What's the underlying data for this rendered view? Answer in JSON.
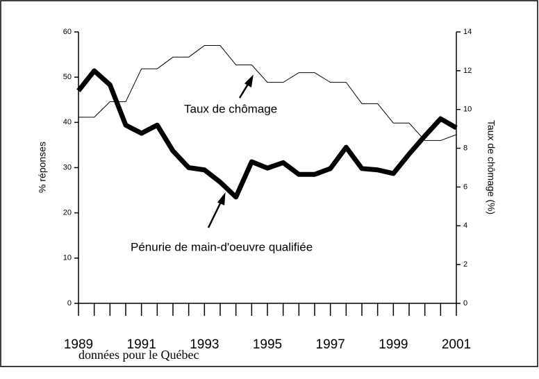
{
  "chart_data": {
    "type": "line",
    "x": [
      1989,
      1989.5,
      1990,
      1990.5,
      1991,
      1991.5,
      1992,
      1992.5,
      1993,
      1993.5,
      1994,
      1994.5,
      1995,
      1995.5,
      1996,
      1996.5,
      1997,
      1997.5,
      1998,
      1998.5,
      1999,
      1999.5,
      2000,
      2000.5,
      2001
    ],
    "series": [
      {
        "name": "Pénurie de main-d’oeuvre qualifiée",
        "color": "#000000",
        "width": 7,
        "values": [
          47,
          51.4,
          48.3,
          39.4,
          37.6,
          39.4,
          33.7,
          30,
          29.5,
          26.8,
          23.5,
          31.3,
          29.9,
          31.1,
          28.5,
          28.5,
          29.8,
          34.5,
          29.8,
          29.5,
          28.7,
          33,
          37,
          40.8,
          38.8
        ]
      },
      {
        "name": "Taux de chômage",
        "color": "#000000",
        "width": 1,
        "axis": "y2",
        "values": [
          9.6,
          9.6,
          10.4,
          10.4,
          12.1,
          12.1,
          12.7,
          12.7,
          13.3,
          13.3,
          12.3,
          12.3,
          11.4,
          11.4,
          11.9,
          11.9,
          11.4,
          11.4,
          10.3,
          10.3,
          9.3,
          9.3,
          8.4,
          8.4,
          8.7
        ]
      }
    ],
    "annotations": [
      "Taux de chômage",
      "Pénurie de main-d'oeuvre qualifiée"
    ],
    "ylabel": "% réponses",
    "y2label": "Taux de chômage (%)",
    "xlim": [
      1989,
      2001
    ],
    "xticks": [
      1989,
      1991,
      1993,
      1995,
      1997,
      1999,
      2001
    ],
    "xtick_marks": [
      1989,
      1989.5,
      1990,
      1990.5,
      1991,
      1991.5,
      1992,
      1992.5,
      1993,
      1993.5,
      1994,
      1994.5,
      1995,
      1995.5,
      1996,
      1996.5,
      1997,
      1997.5,
      1998,
      1998.5,
      1999,
      1999.5,
      2000,
      2000.5,
      2001
    ],
    "ylim": [
      0,
      60
    ],
    "yticks": [
      0,
      10,
      20,
      30,
      40,
      50,
      60
    ],
    "y2lim": [
      0,
      14
    ],
    "y2ticks": [
      0,
      2,
      4,
      6,
      8,
      10,
      12,
      14
    ],
    "note": "données pour le Québec"
  }
}
